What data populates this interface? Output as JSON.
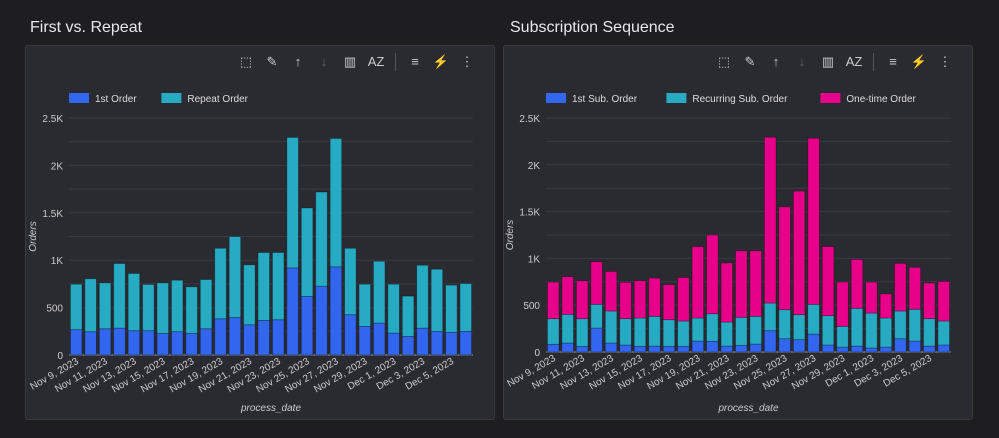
{
  "toolbar": {
    "icons": [
      "select-icon",
      "pencil-icon",
      "sort-asc-icon",
      "sort-desc-icon",
      "chart-settings-icon",
      "sort-az-icon",
      "filter-icon",
      "clear-filter-icon",
      "more-icon"
    ],
    "glyphs": [
      "⬚",
      "✎",
      "↑",
      "↓",
      "▥",
      "AZ",
      "≡",
      "⚡",
      "⋮"
    ]
  },
  "chart_data": [
    {
      "type": "bar",
      "stacked": true,
      "title": "First vs. Repeat",
      "xlabel": "process_date",
      "ylabel": "Orders",
      "ylim": [
        0,
        2500
      ],
      "yticks": [
        "0",
        "500",
        "1K",
        "1.5K",
        "2K",
        "2.5K"
      ],
      "ytick_values": [
        0,
        500,
        1000,
        1500,
        2000,
        2500
      ],
      "categories": [
        "Nov 9, 2023",
        "Nov 10, 2023",
        "Nov 11, 2023",
        "Nov 12, 2023",
        "Nov 13, 2023",
        "Nov 14, 2023",
        "Nov 15, 2023",
        "Nov 16, 2023",
        "Nov 17, 2023",
        "Nov 18, 2023",
        "Nov 19, 2023",
        "Nov 20, 2023",
        "Nov 21, 2023",
        "Nov 22, 2023",
        "Nov 23, 2023",
        "Nov 24, 2023",
        "Nov 25, 2023",
        "Nov 26, 2023",
        "Nov 27, 2023",
        "Nov 28, 2023",
        "Nov 29, 2023",
        "Nov 30, 2023",
        "Dec 1, 2023",
        "Dec 2, 2023",
        "Dec 3, 2023",
        "Dec 4, 2023",
        "Dec 5, 2023",
        "Dec 6, 2023"
      ],
      "xtick_labels": [
        "Nov 9, 2023",
        "Nov 11, 2023",
        "Nov 13, 2023",
        "Nov 15, 2023",
        "Nov 17, 2023",
        "Nov 19, 2023",
        "Nov 21, 2023",
        "Nov 23, 2023",
        "Nov 25, 2023",
        "Nov 27, 2023",
        "Nov 29, 2023",
        "Dec 1, 2023",
        "Dec 3, 2023",
        "Dec 5, 2023"
      ],
      "legend_position": "top-left",
      "series": [
        {
          "name": "1st Order",
          "color": "#3366ee",
          "values": [
            267,
            246,
            277,
            284,
            256,
            256,
            228,
            246,
            228,
            277,
            382,
            396,
            319,
            365,
            372,
            919,
            618,
            726,
            930,
            425,
            302,
            337,
            232,
            196,
            284,
            249,
            239,
            249
          ]
        },
        {
          "name": "Repeat Order",
          "color": "#26abc3",
          "values": [
            480,
            558,
            484,
            681,
            604,
            488,
            533,
            543,
            491,
            519,
            744,
            853,
            632,
            716,
            709,
            1376,
            933,
            993,
            1354,
            701,
            445,
            652,
            515,
            425,
            663,
            656,
            498,
            505
          ]
        }
      ]
    },
    {
      "type": "bar",
      "stacked": true,
      "title": "Subscription Sequence",
      "xlabel": "process_date",
      "ylabel": "Orders",
      "ylim": [
        0,
        2500
      ],
      "yticks": [
        "0",
        "500",
        "1K",
        "1.5K",
        "2K",
        "2.5K"
      ],
      "ytick_values": [
        0,
        500,
        1000,
        1500,
        2000,
        2500
      ],
      "categories": [
        "Nov 9, 2023",
        "Nov 10, 2023",
        "Nov 11, 2023",
        "Nov 12, 2023",
        "Nov 13, 2023",
        "Nov 14, 2023",
        "Nov 15, 2023",
        "Nov 16, 2023",
        "Nov 17, 2023",
        "Nov 18, 2023",
        "Nov 19, 2023",
        "Nov 20, 2023",
        "Nov 21, 2023",
        "Nov 22, 2023",
        "Nov 23, 2023",
        "Nov 24, 2023",
        "Nov 25, 2023",
        "Nov 26, 2023",
        "Nov 27, 2023",
        "Nov 28, 2023",
        "Nov 29, 2023",
        "Nov 30, 2023",
        "Dec 1, 2023",
        "Dec 2, 2023",
        "Dec 3, 2023",
        "Dec 4, 2023",
        "Dec 5, 2023",
        "Dec 6, 2023"
      ],
      "xtick_labels": [
        "Nov 9, 2023",
        "Nov 11, 2023",
        "Nov 13, 2023",
        "Nov 15, 2023",
        "Nov 17, 2023",
        "Nov 19, 2023",
        "Nov 21, 2023",
        "Nov 23, 2023",
        "Nov 25, 2023",
        "Nov 27, 2023",
        "Nov 29, 2023",
        "Dec 1, 2023",
        "Dec 3, 2023",
        "Dec 5, 2023"
      ],
      "legend_position": "top-left",
      "series": [
        {
          "name": "1st Sub. Order",
          "color": "#3366ee",
          "values": [
            82,
            96,
            60,
            256,
            96,
            75,
            60,
            64,
            60,
            60,
            117,
            114,
            64,
            71,
            85,
            228,
            142,
            132,
            192,
            75,
            53,
            64,
            43,
            53,
            142,
            117,
            64,
            75
          ]
        },
        {
          "name": "Recurring Sub. Order",
          "color": "#26abc3",
          "values": [
            274,
            306,
            296,
            253,
            342,
            281,
            303,
            317,
            285,
            271,
            246,
            295,
            256,
            299,
            296,
            295,
            310,
            267,
            317,
            313,
            221,
            402,
            373,
            310,
            296,
            339,
            292,
            256
          ]
        },
        {
          "name": "One-time Order",
          "color": "#e6008a",
          "values": [
            391,
            402,
            405,
            456,
            422,
            388,
            398,
            408,
            374,
            465,
            763,
            840,
            631,
            711,
            700,
            1772,
            1099,
            1320,
            1775,
            738,
            473,
            523,
            331,
            258,
            509,
            449,
            381,
            423
          ]
        }
      ]
    }
  ]
}
